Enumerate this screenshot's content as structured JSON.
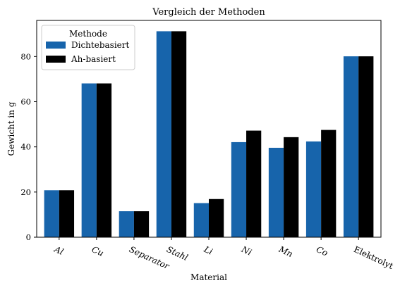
{
  "chart_data": {
    "type": "bar",
    "title": "Vergleich der Methoden",
    "xlabel": "Material",
    "ylabel": "Gewicht in g",
    "categories": [
      "Al",
      "Cu",
      "Separator",
      "Stahl",
      "Li",
      "Ni",
      "Mn",
      "Co",
      "Elektrolyt"
    ],
    "italic_categories": [
      true,
      true,
      true,
      true,
      true,
      true,
      true,
      true,
      false
    ],
    "series": [
      {
        "name": "Dichtebasiert",
        "color": "#1764ab",
        "values": [
          20.8,
          68.1,
          11.5,
          91.2,
          15.1,
          42.1,
          39.6,
          42.4,
          80.1
        ]
      },
      {
        "name": "Ah-basiert",
        "color": "#000000",
        "values": [
          20.8,
          68.1,
          11.5,
          91.2,
          16.9,
          47.2,
          44.3,
          47.5,
          80.1
        ]
      }
    ],
    "ylim": [
      0,
      96
    ],
    "yticks": [
      0,
      20,
      40,
      60,
      80
    ],
    "grid": false,
    "legend": {
      "title": "Methode",
      "placement": "top-left"
    }
  }
}
